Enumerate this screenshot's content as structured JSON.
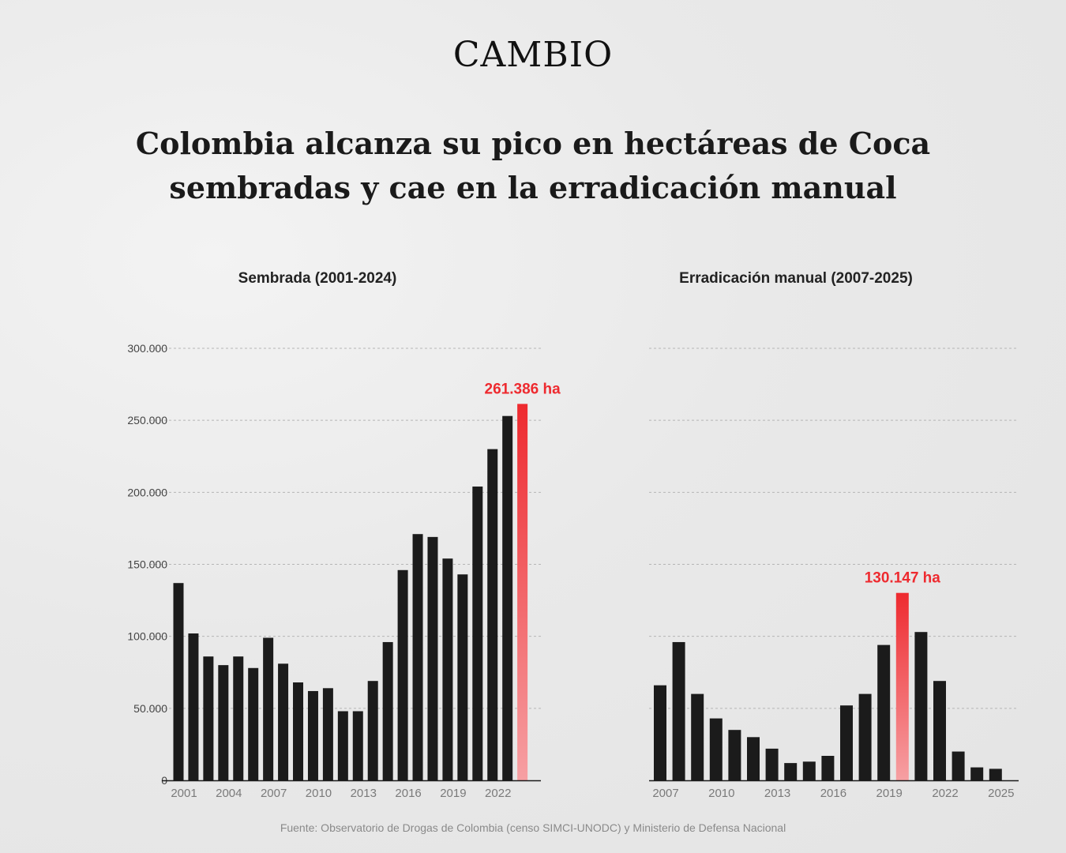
{
  "brand": "CAMBIO",
  "headline": {
    "line1": "Colombia alcanza su pico en hectáreas de Coca",
    "line2": "sembradas y cae en la erradicación manual"
  },
  "source": "Fuente: Observatorio de Drogas de Colombia (censo SIMCI-UNODC) y Ministerio de Defensa Nacional",
  "colors": {
    "bar": "#1b1b1b",
    "highlight": "#ee2a2f",
    "highlight_fade": "#f6a0a3",
    "grid": "#b5b5b5",
    "tick": "#7a7a7a",
    "axis": "#1b1b1b"
  },
  "chart_data": [
    {
      "type": "bar",
      "title": "Sembrada (2001-2024)",
      "xlabel": "",
      "ylabel": "",
      "x": [
        2001,
        2002,
        2003,
        2004,
        2005,
        2006,
        2007,
        2008,
        2009,
        2010,
        2011,
        2012,
        2013,
        2014,
        2015,
        2016,
        2017,
        2018,
        2019,
        2020,
        2021,
        2022,
        2023,
        2024
      ],
      "values": [
        137000,
        102000,
        86000,
        80000,
        86000,
        78000,
        99000,
        81000,
        68000,
        62000,
        64000,
        48000,
        48000,
        69000,
        96000,
        146000,
        171000,
        169000,
        154000,
        143000,
        204000,
        230000,
        253000,
        261386
      ],
      "xtick_labels": [
        "2001",
        "2004",
        "2007",
        "2010",
        "2013",
        "2016",
        "2019",
        "2022"
      ],
      "ylim": [
        0,
        300000
      ],
      "yticks": [
        0,
        50000,
        100000,
        150000,
        200000,
        250000,
        300000
      ],
      "ytick_labels": [
        "0",
        "50.000",
        "100.000",
        "150.000",
        "200.000",
        "250.000",
        "300.000"
      ],
      "grid": true,
      "highlight": {
        "x": 2024,
        "label": "261.386 ha"
      }
    },
    {
      "type": "bar",
      "title": "Erradicación manual (2007-2025)",
      "xlabel": "",
      "ylabel": "",
      "x": [
        2007,
        2008,
        2009,
        2010,
        2011,
        2012,
        2013,
        2014,
        2015,
        2016,
        2017,
        2018,
        2019,
        2020,
        2021,
        2022,
        2023,
        2024,
        2025
      ],
      "values": [
        66000,
        96000,
        60000,
        43000,
        35000,
        30000,
        22000,
        12000,
        13000,
        17000,
        52000,
        60000,
        94000,
        130147,
        103000,
        69000,
        20000,
        9000,
        8000
      ],
      "xtick_labels": [
        "2007",
        "2010",
        "2013",
        "2016",
        "2019",
        "2022",
        "2025"
      ],
      "ylim": [
        0,
        300000
      ],
      "grid": true,
      "highlight": {
        "x": 2020,
        "label": "130.147 ha"
      }
    }
  ]
}
